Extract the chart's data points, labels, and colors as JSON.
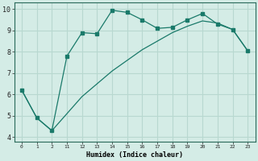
{
  "xlabel": "Humidex (Indice chaleur)",
  "bg_color": "#d4ece6",
  "grid_color": "#b8d8d0",
  "line_color": "#1a7a6a",
  "hours": [
    0,
    1,
    2,
    11,
    12,
    13,
    14,
    15,
    16,
    17,
    18,
    19,
    20,
    21,
    22,
    23
  ],
  "line1_y": [
    6.2,
    4.9,
    4.3,
    7.8,
    8.9,
    8.85,
    9.95,
    9.85,
    9.5,
    9.1,
    9.15,
    9.5,
    9.8,
    9.3,
    9.05,
    8.05
  ],
  "line2_y": [
    6.2,
    4.9,
    4.3,
    5.1,
    5.9,
    6.5,
    7.1,
    7.6,
    8.1,
    8.5,
    8.9,
    9.2,
    9.45,
    9.35,
    9.05,
    8.05
  ],
  "ylim": [
    3.8,
    10.3
  ],
  "yticks": [
    4,
    5,
    6,
    7,
    8,
    9,
    10
  ],
  "figsize": [
    3.2,
    2.0
  ],
  "dpi": 100
}
